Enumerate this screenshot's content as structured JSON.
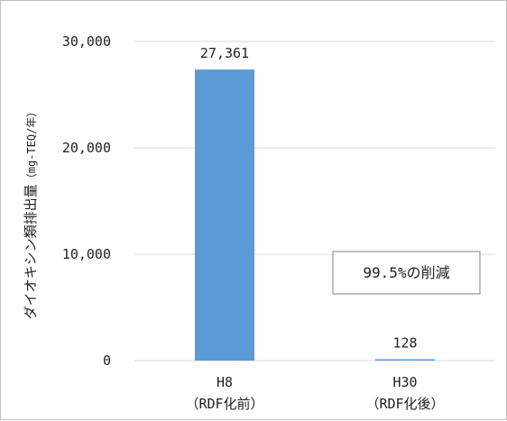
{
  "chart_data": {
    "type": "bar",
    "title": "",
    "xlabel": "",
    "ylabel": "ダイオキシン類排出量",
    "ylabel_unit": "（mg-TEQ/年）",
    "categories": [
      {
        "line1": "H8",
        "line2": "（RDF化前）"
      },
      {
        "line1": "H30",
        "line2": "（RDF化後）"
      }
    ],
    "values": [
      27361,
      128
    ],
    "data_labels": [
      "27,361",
      "128"
    ],
    "yticks": [
      {
        "value": 0,
        "label": "0"
      },
      {
        "value": 10000,
        "label": "10,000"
      },
      {
        "value": 20000,
        "label": "20,000"
      },
      {
        "value": 30000,
        "label": "30,000"
      }
    ],
    "ylim": [
      0,
      30000
    ],
    "grid": "horizontal",
    "legend": "none",
    "bar_color": "#5b9bd5",
    "grid_color": "#d9d9d9",
    "annotation": "99.5%の削減"
  }
}
